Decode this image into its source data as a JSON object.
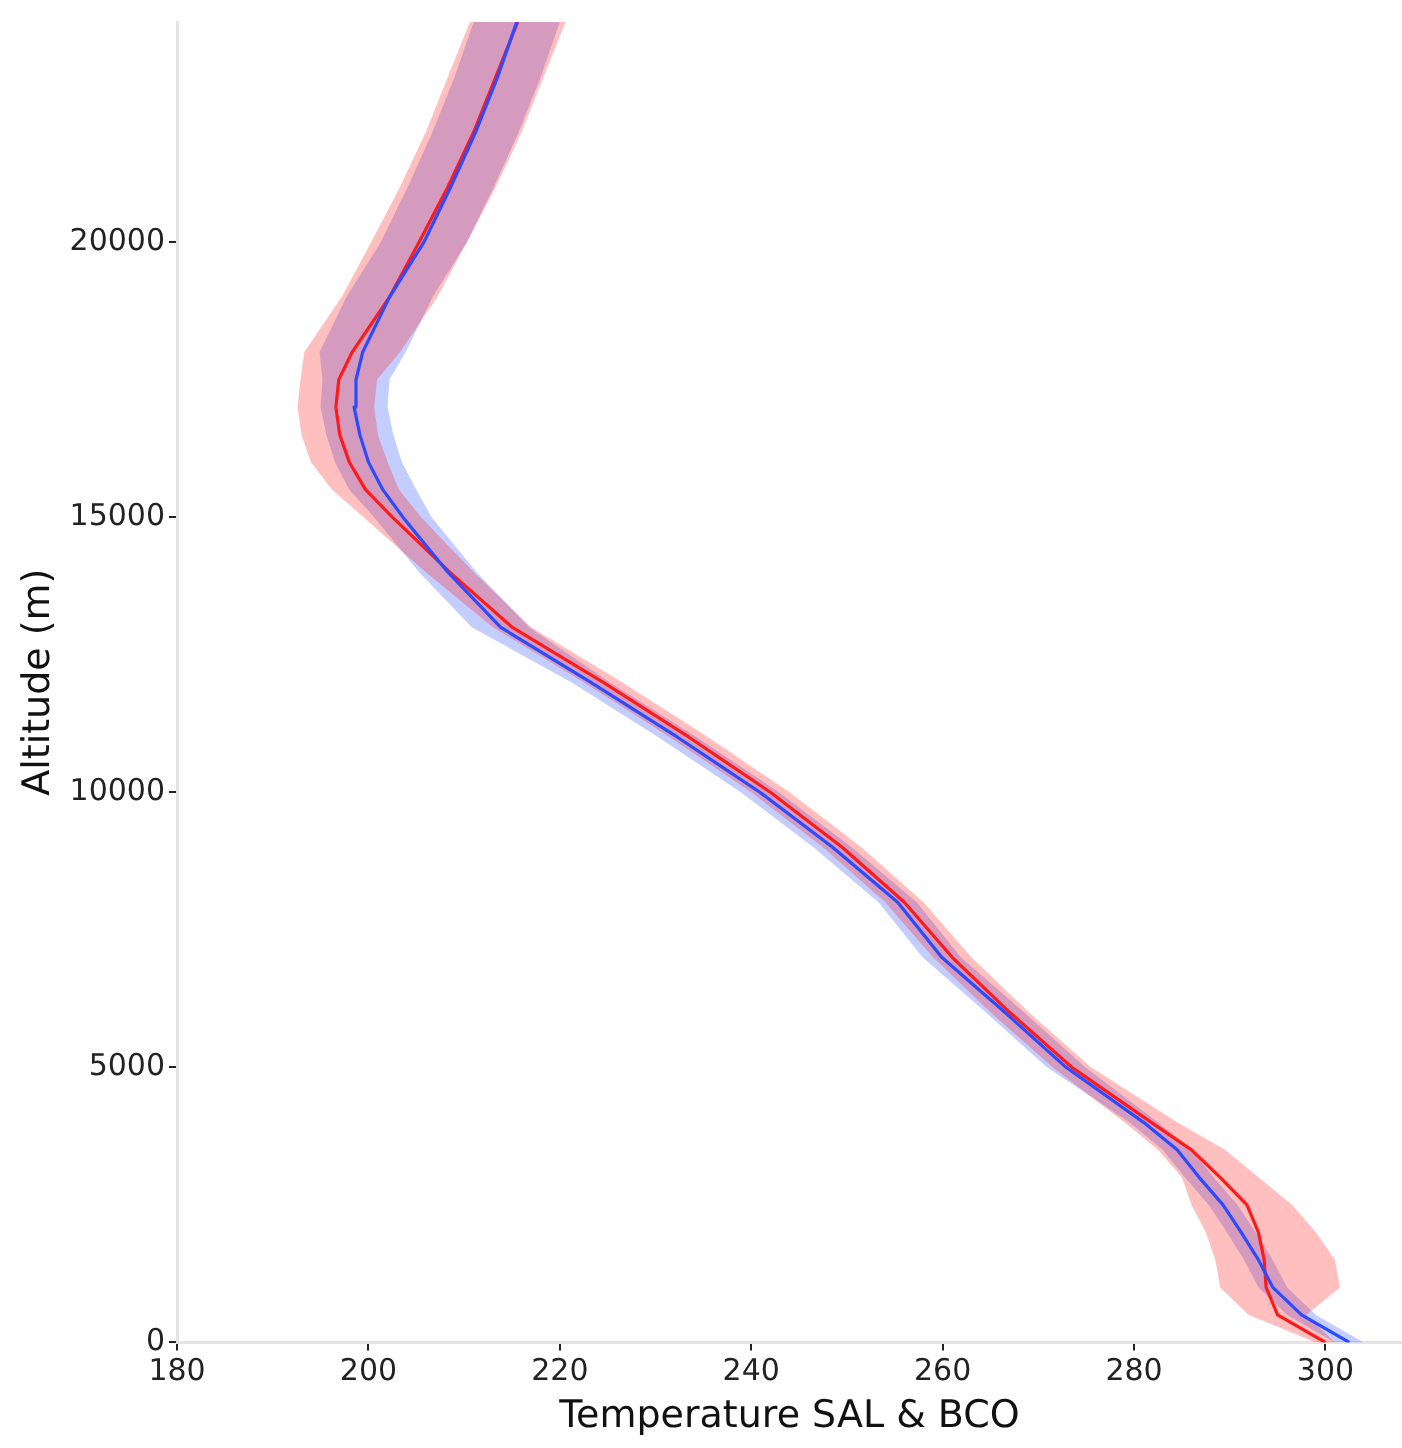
{
  "chart_data": {
    "type": "line",
    "orientation": "horizontal",
    "xlabel": "Temperature SAL & BCO",
    "ylabel": "Altitude (m)",
    "x": [
      0,
      500,
      1000,
      1500,
      2000,
      2500,
      3000,
      3500,
      4000,
      5000,
      6000,
      7000,
      8000,
      9000,
      10000,
      11000,
      12000,
      13000,
      14000,
      15000,
      15500,
      16000,
      16500,
      17000,
      17500,
      18000,
      19000,
      20000,
      21000,
      22000,
      23000,
      24000
    ],
    "xlim": [
      180,
      308
    ],
    "xticks": [
      180,
      200,
      220,
      240,
      260,
      280,
      300
    ],
    "ylim": [
      0,
      24000
    ],
    "yticks": [
      0,
      5000,
      10000,
      15000,
      20000
    ],
    "grid": false,
    "legend": false,
    "marker": "none",
    "series": [
      {
        "color": "#2b4bff",
        "values": [
          302.5,
          297.5,
          294.5,
          293.0,
          291.2,
          289.3,
          286.8,
          284.5,
          281.0,
          272.9,
          266.5,
          259.9,
          255.3,
          248.5,
          240.9,
          232.3,
          223.2,
          213.8,
          208.3,
          203.6,
          201.5,
          200.0,
          199.1,
          198.5,
          198.7,
          199.4,
          202.2,
          205.8,
          208.6,
          211.2,
          213.5,
          215.5
        ],
        "lower": [
          301.0,
          296.0,
          293.0,
          291.5,
          289.7,
          287.8,
          285.3,
          283.0,
          279.5,
          270.9,
          264.5,
          257.9,
          253.3,
          246.5,
          238.9,
          230.3,
          221.2,
          210.8,
          205.3,
          200.6,
          198.0,
          196.5,
          195.6,
          195.0,
          195.2,
          194.9,
          197.7,
          201.3,
          204.1,
          206.7,
          209.0,
          211.0
        ],
        "upper": [
          304.0,
          299.0,
          296.0,
          294.5,
          292.7,
          290.8,
          288.3,
          286.0,
          282.5,
          274.9,
          268.5,
          261.9,
          257.3,
          250.5,
          242.9,
          234.3,
          225.2,
          216.8,
          211.3,
          206.6,
          205.0,
          203.5,
          202.6,
          202.0,
          202.2,
          203.9,
          206.7,
          210.3,
          213.1,
          215.7,
          218.0,
          220.0
        ]
      },
      {
        "color": "#ff1a1a",
        "values": [
          300.0,
          295.0,
          293.8,
          293.6,
          293.0,
          291.8,
          289.0,
          286.0,
          281.8,
          273.5,
          267.0,
          261.0,
          256.0,
          249.5,
          242.0,
          233.5,
          224.5,
          215.0,
          208.5,
          202.5,
          199.7,
          198.0,
          197.0,
          196.6,
          196.9,
          198.3,
          202.2,
          205.3,
          208.3,
          211.0,
          213.3,
          215.6
        ],
        "lower": [
          299.0,
          292.0,
          289.0,
          288.5,
          287.5,
          286.0,
          285.0,
          282.5,
          279.0,
          271.5,
          265.0,
          259.0,
          254.0,
          247.5,
          240.0,
          231.5,
          222.5,
          213.0,
          206.0,
          199.5,
          196.2,
          194.0,
          193.0,
          192.6,
          192.9,
          193.3,
          197.2,
          200.3,
          203.3,
          206.0,
          208.3,
          210.6
        ],
        "upper": [
          301.0,
          298.0,
          301.5,
          301.0,
          299.0,
          296.5,
          293.0,
          289.5,
          284.5,
          275.5,
          269.0,
          263.0,
          258.0,
          251.5,
          244.0,
          235.5,
          226.5,
          217.0,
          211.0,
          205.5,
          203.2,
          202.0,
          201.0,
          200.6,
          200.9,
          203.3,
          207.2,
          210.3,
          213.3,
          216.0,
          218.3,
          220.6
        ]
      }
    ]
  }
}
